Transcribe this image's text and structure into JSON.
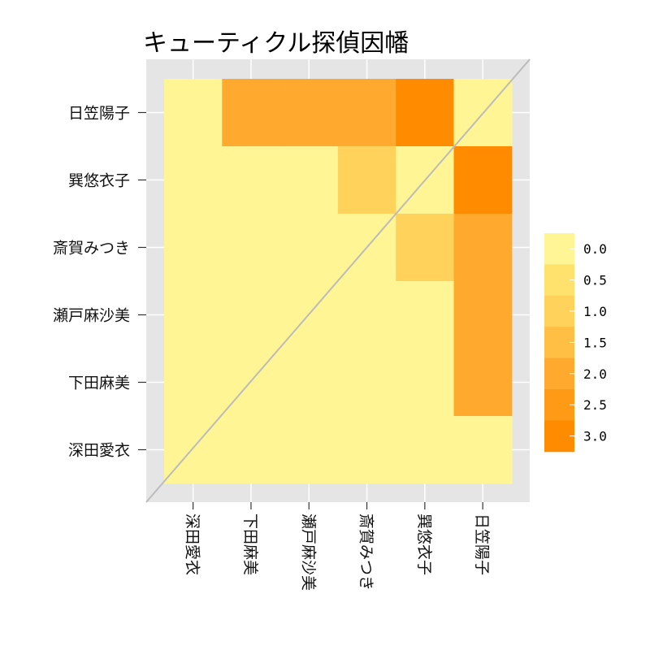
{
  "chart_data": {
    "type": "heatmap",
    "title": "キューティクル探偵因幡",
    "rows": [
      "日笠陽子",
      "巽悠衣子",
      "斎賀みつき",
      "瀬戸麻沙美",
      "下田麻美",
      "深田愛衣"
    ],
    "columns": [
      "深田愛衣",
      "下田麻美",
      "瀬戸麻沙美",
      "斎賀みつき",
      "巽悠衣子",
      "日笠陽子"
    ],
    "values": [
      [
        0,
        2,
        2,
        2,
        3,
        0
      ],
      [
        0,
        0,
        0,
        1,
        0,
        3
      ],
      [
        0,
        0,
        0,
        0,
        1,
        2
      ],
      [
        0,
        0,
        0,
        0,
        0,
        2
      ],
      [
        0,
        0,
        0,
        0,
        0,
        2
      ],
      [
        0,
        0,
        0,
        0,
        0,
        0
      ]
    ],
    "color_scale": {
      "breaks": [
        "0.0",
        "0.5",
        "1.0",
        "1.5",
        "2.0",
        "2.5",
        "3.0"
      ],
      "colors": [
        "#FFF594",
        "#FFE26E",
        "#FFD25C",
        "#FFBF45",
        "#FFA92E",
        "#FF9A16",
        "#FF8C00"
      ]
    },
    "panel_background": "#E5E5E5",
    "grid_color": "#FFFFFF",
    "diagonal_color": "#BBBBBB"
  }
}
